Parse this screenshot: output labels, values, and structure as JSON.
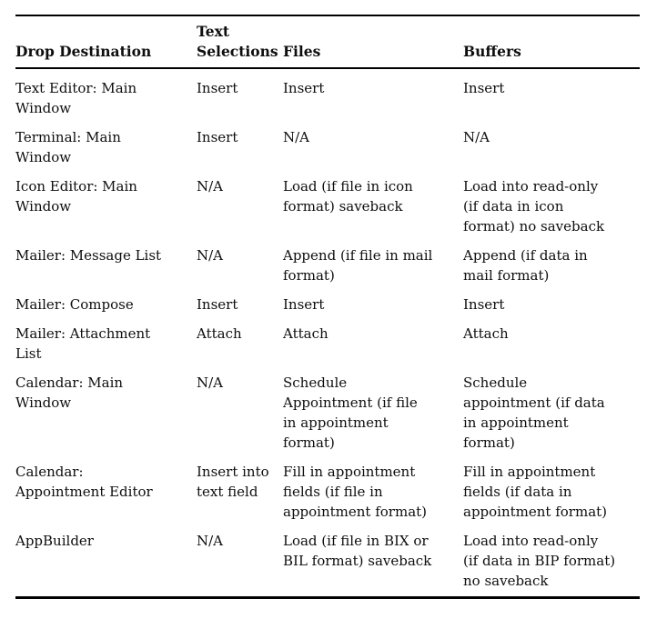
{
  "page": {
    "background": "#ffffff",
    "text_color": "#0e0e0e",
    "rule_color": "#000000"
  },
  "table": {
    "headers": [
      "Drop Destination",
      "Text\nSelections",
      "Files",
      "Buffers"
    ],
    "rows": [
      {
        "cells": [
          "Text Editor: Main\nWindow",
          "Insert",
          "Insert",
          "Insert"
        ]
      },
      {
        "cells": [
          "Terminal: Main\nWindow",
          "Insert",
          "N/A",
          "N/A"
        ]
      },
      {
        "cells": [
          "Icon Editor: Main\nWindow",
          "N/A",
          "Load (if file in icon\nformat) saveback",
          "Load into read-only\n(if data in icon\nformat) no saveback"
        ]
      },
      {
        "cells": [
          "Mailer: Message List",
          "N/A",
          "Append (if file in mail\nformat)",
          "Append (if data in\nmail format)"
        ]
      },
      {
        "cells": [
          "Mailer: Compose",
          "Insert",
          "Insert",
          "Insert"
        ]
      },
      {
        "cells": [
          "Mailer: Attachment\nList",
          "Attach",
          "Attach",
          "Attach"
        ]
      },
      {
        "cells": [
          "Calendar: Main\nWindow",
          "N/A",
          "Schedule\nAppointment (if file\nin appointment\nformat)",
          "Schedule\nappointment (if data\nin appointment\nformat)"
        ]
      },
      {
        "cells": [
          "Calendar:\nAppointment Editor",
          "Insert into\ntext field",
          "Fill in appointment\nfields (if file in\nappointment format)",
          "Fill in appointment\nfields (if data in\nappointment format)"
        ]
      },
      {
        "cells": [
          "AppBuilder",
          "N/A",
          "Load (if file in BIX or\nBIL format) saveback",
          "Load into read-only\n(if data in BIP format)\nno saveback"
        ]
      }
    ]
  }
}
